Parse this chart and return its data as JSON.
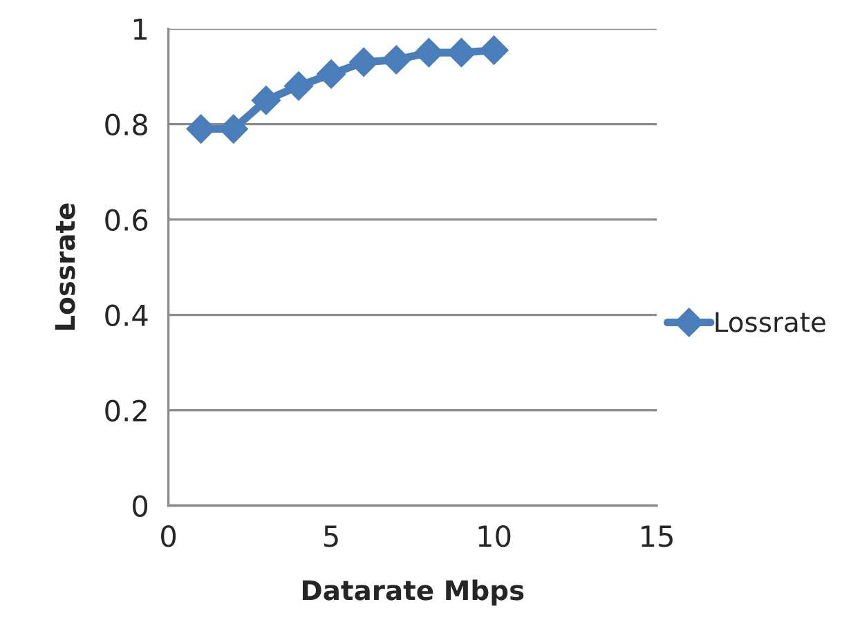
{
  "chart_data": {
    "type": "line",
    "xlabel": "Datarate Mbps",
    "ylabel": "Lossrate",
    "x": [
      1,
      2,
      3,
      4,
      5,
      6,
      7,
      8,
      9,
      10
    ],
    "series": [
      {
        "name": "Lossrate",
        "color": "#4a7ebb",
        "values": [
          0.79,
          0.79,
          0.85,
          0.88,
          0.905,
          0.93,
          0.935,
          0.95,
          0.95,
          0.955
        ]
      }
    ],
    "xlim": [
      0,
      15
    ],
    "xticks": [
      0,
      5,
      10,
      15
    ],
    "ylim": [
      0,
      1
    ],
    "yticks": [
      0,
      0.2,
      0.4,
      0.6,
      0.8,
      {
        "value": 1,
        "label": "1"
      }
    ],
    "grid": "y",
    "legend": "right",
    "marker": "diamond",
    "line_style": "solid"
  }
}
